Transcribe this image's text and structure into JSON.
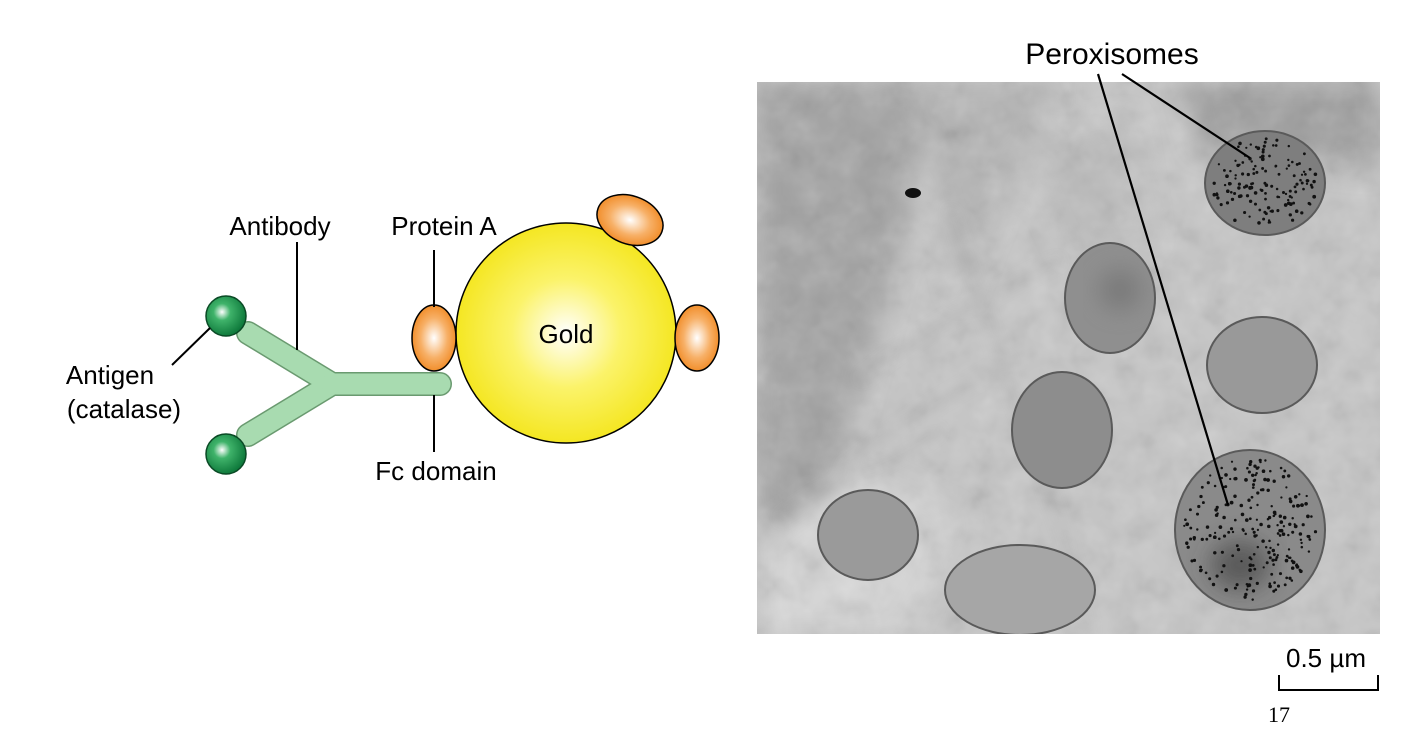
{
  "diagram": {
    "labels": {
      "antibody": "Antibody",
      "protein_a": "Protein A",
      "gold": "Gold",
      "antigen_line1": "Antigen",
      "antigen_line2": "(catalase)",
      "fc_domain": "Fc domain"
    },
    "colors": {
      "antibody": "#a8dbb0",
      "antigen": "#1a8a47",
      "gold": "#f6ec2a",
      "protein_a": "#f3902b"
    }
  },
  "micrograph": {
    "label": "Peroxisomes",
    "scale_bar": "0.5 µm"
  },
  "page_number": "17"
}
